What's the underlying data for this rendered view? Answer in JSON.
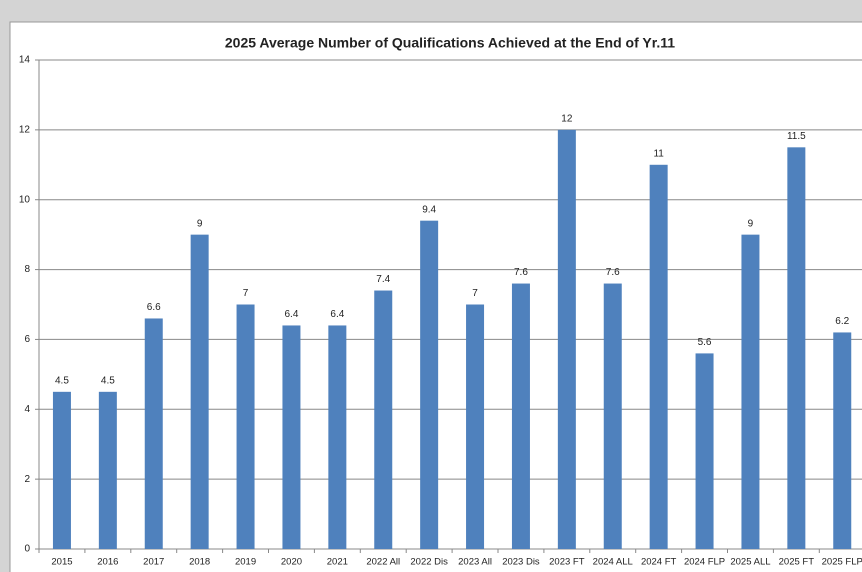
{
  "chart_data": {
    "type": "bar",
    "title": "2025 Average Number of Qualifications Achieved at the End of Yr.11",
    "categories": [
      "2015",
      "2016",
      "2017",
      "2018",
      "2019",
      "2020",
      "2021",
      "2022 All",
      "2022 Dis",
      "2023 All",
      "2023 Dis",
      "2023 FT",
      "2024 ALL",
      "2024 FT",
      "2024 FLP",
      "2025 ALL",
      "2025 FT",
      "2025 FLP"
    ],
    "values": [
      4.5,
      4.5,
      6.6,
      9,
      7,
      6.4,
      6.4,
      7.4,
      9.4,
      7,
      7.6,
      12,
      7.6,
      11,
      5.6,
      9,
      11.5,
      6.2
    ],
    "color": "#4f81bd",
    "ylim": [
      0,
      14
    ],
    "yticks": [
      0,
      2,
      4,
      6,
      8,
      10,
      12,
      14
    ],
    "grid": true
  }
}
